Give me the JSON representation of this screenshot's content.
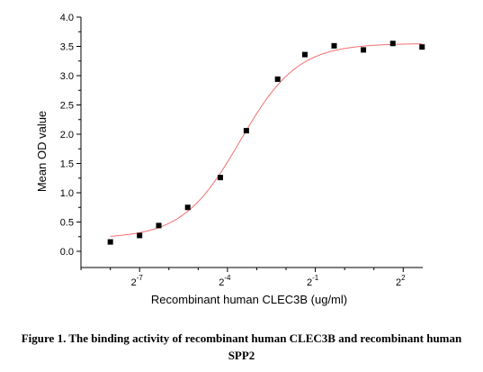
{
  "chart_data": {
    "type": "scatter",
    "xlabel": "Recombinant human  CLEC3B (ug/ml)",
    "ylabel": "Mean OD value",
    "x_scale": "log2",
    "y_ticks": [
      "0.0",
      "0.5",
      "1.0",
      "1.5",
      "2.0",
      "2.5",
      "3.0",
      "3.5",
      "4.0"
    ],
    "x_ticks": [
      {
        "value": 0.0078125,
        "base": "2",
        "exponent": "-7"
      },
      {
        "value": 0.0625,
        "base": "2",
        "exponent": "-4"
      },
      {
        "value": 0.5,
        "base": "2",
        "exponent": "-1"
      },
      {
        "value": 4,
        "base": "2",
        "exponent": "2"
      }
    ],
    "ylim": [
      0,
      4
    ],
    "xlim": [
      0.00195,
      6.35
    ],
    "points": [
      {
        "x": 0.00391,
        "y": 0.16
      },
      {
        "x": 0.00781,
        "y": 0.27
      },
      {
        "x": 0.0123,
        "y": 0.44
      },
      {
        "x": 0.0244,
        "y": 0.75
      },
      {
        "x": 0.0528,
        "y": 1.26
      },
      {
        "x": 0.0977,
        "y": 2.06
      },
      {
        "x": 0.205,
        "y": 2.94
      },
      {
        "x": 0.39,
        "y": 3.36
      },
      {
        "x": 0.78,
        "y": 3.51
      },
      {
        "x": 1.56,
        "y": 3.44
      },
      {
        "x": 3.13,
        "y": 3.55
      },
      {
        "x": 6.25,
        "y": 3.49
      }
    ],
    "fit": {
      "bottom": 0.22,
      "top": 3.55,
      "ec50": 0.0843,
      "hill": 1.47
    },
    "colors": {
      "fit_line": "#f07070",
      "points": "#000000",
      "axis": "#000000"
    },
    "grid": false
  },
  "caption": {
    "line1": "Figure 1. The binding activity of recombinant human CLEC3B and recombinant human",
    "line2": "SPP2"
  }
}
